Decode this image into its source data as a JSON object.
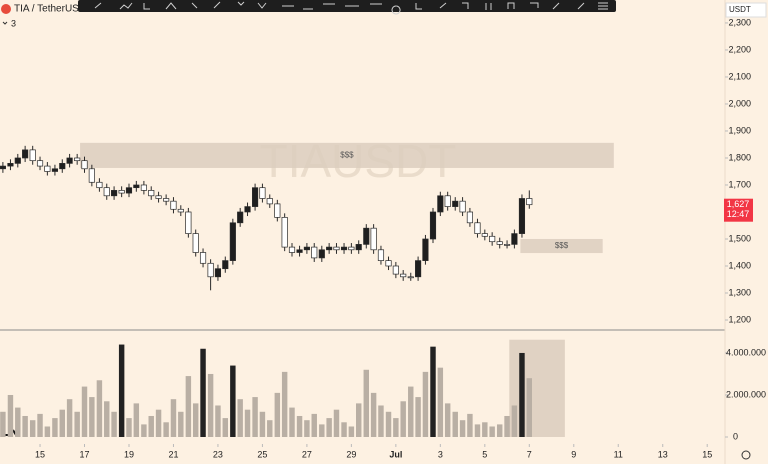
{
  "chart_data": {
    "type": "candlestick",
    "title": "TIA / TetherUS",
    "indicator_count": "3",
    "watermark": "TIAUSDT",
    "currency": "USDT",
    "up_color": "#1f1f1f",
    "down_color": "#ffffff",
    "border_color": "#2a2a2a",
    "x": [
      13.33,
      13.67,
      14,
      14.33,
      14.67,
      15,
      15.33,
      15.67,
      16,
      16.33,
      16.67,
      17,
      17.33,
      17.67,
      18,
      18.33,
      18.67,
      19,
      19.33,
      19.67,
      20,
      20.33,
      20.67,
      21,
      21.33,
      21.67,
      22,
      22.33,
      22.67,
      23,
      23.33,
      23.67,
      24,
      24.33,
      24.67,
      25,
      25.33,
      25.67,
      26,
      26.33,
      26.67,
      27,
      27.33,
      27.67,
      28,
      28.33,
      28.67,
      29,
      29.33,
      29.67,
      30,
      30.33,
      30.67,
      31,
      31.33,
      31.67,
      32,
      32.33,
      32.67,
      33,
      33.33,
      33.67,
      34,
      34.33,
      34.67,
      35,
      35.33,
      35.67,
      36,
      36.33,
      36.67,
      37
    ],
    "open": [
      1760,
      1770,
      1780,
      1800,
      1830,
      1790,
      1770,
      1750,
      1760,
      1780,
      1800,
      1790,
      1760,
      1710,
      1690,
      1660,
      1680,
      1670,
      1690,
      1700,
      1680,
      1660,
      1650,
      1640,
      1610,
      1600,
      1520,
      1450,
      1410,
      1360,
      1390,
      1420,
      1560,
      1600,
      1620,
      1690,
      1650,
      1630,
      1580,
      1470,
      1450,
      1460,
      1470,
      1430,
      1460,
      1470,
      1460,
      1470,
      1460,
      1480,
      1540,
      1460,
      1420,
      1400,
      1370,
      1360,
      1360,
      1420,
      1500,
      1600,
      1660,
      1620,
      1640,
      1600,
      1560,
      1520,
      1510,
      1490,
      1480,
      1480,
      1520,
      1650
    ],
    "high": [
      1785,
      1795,
      1815,
      1845,
      1845,
      1805,
      1785,
      1775,
      1795,
      1815,
      1815,
      1805,
      1775,
      1725,
      1705,
      1695,
      1695,
      1705,
      1715,
      1715,
      1695,
      1675,
      1665,
      1655,
      1625,
      1615,
      1535,
      1465,
      1425,
      1405,
      1435,
      1575,
      1615,
      1635,
      1705,
      1705,
      1665,
      1645,
      1595,
      1485,
      1475,
      1485,
      1485,
      1475,
      1485,
      1485,
      1485,
      1485,
      1495,
      1555,
      1555,
      1475,
      1435,
      1415,
      1385,
      1375,
      1435,
      1515,
      1615,
      1675,
      1675,
      1655,
      1655,
      1615,
      1575,
      1535,
      1525,
      1505,
      1495,
      1535,
      1665,
      1680
    ],
    "low": [
      1745,
      1755,
      1765,
      1785,
      1775,
      1755,
      1735,
      1735,
      1745,
      1765,
      1775,
      1745,
      1695,
      1675,
      1645,
      1645,
      1655,
      1655,
      1675,
      1665,
      1645,
      1635,
      1625,
      1595,
      1585,
      1505,
      1435,
      1395,
      1310,
      1345,
      1375,
      1405,
      1545,
      1585,
      1605,
      1635,
      1615,
      1565,
      1455,
      1435,
      1435,
      1445,
      1415,
      1415,
      1445,
      1445,
      1445,
      1445,
      1445,
      1465,
      1445,
      1405,
      1385,
      1355,
      1345,
      1345,
      1345,
      1405,
      1485,
      1585,
      1605,
      1605,
      1585,
      1545,
      1505,
      1495,
      1475,
      1465,
      1465,
      1465,
      1505,
      1612
    ],
    "close": [
      1770,
      1780,
      1800,
      1830,
      1790,
      1770,
      1750,
      1760,
      1780,
      1800,
      1790,
      1760,
      1710,
      1690,
      1660,
      1680,
      1670,
      1690,
      1700,
      1680,
      1660,
      1650,
      1640,
      1610,
      1600,
      1520,
      1450,
      1410,
      1360,
      1390,
      1420,
      1560,
      1600,
      1620,
      1690,
      1650,
      1630,
      1580,
      1470,
      1450,
      1460,
      1470,
      1430,
      1460,
      1470,
      1460,
      1470,
      1460,
      1480,
      1540,
      1460,
      1420,
      1400,
      1370,
      1360,
      1360,
      1420,
      1500,
      1600,
      1660,
      1620,
      1640,
      1600,
      1560,
      1520,
      1510,
      1490,
      1480,
      1480,
      1520,
      1650,
      1627
    ],
    "xlim": [
      13.2,
      45.8
    ],
    "xticks": [
      15,
      17,
      19,
      21,
      23,
      25,
      27,
      29,
      {
        "value": 31,
        "label": "Jul"
      },
      {
        "value": 33,
        "label": "3"
      },
      {
        "value": 35,
        "label": "5"
      },
      {
        "value": 37,
        "label": "7"
      },
      {
        "value": 39,
        "label": "9"
      },
      {
        "value": 41,
        "label": "11"
      },
      {
        "value": 43,
        "label": "13"
      },
      {
        "value": 45,
        "label": "15"
      }
    ],
    "ylim": [
      1163,
      2385
    ],
    "yticks": [
      {
        "value": 1200,
        "label": "1,200"
      },
      {
        "value": 1300,
        "label": "1,300"
      },
      {
        "value": 1400,
        "label": "1,400"
      },
      {
        "value": 1500,
        "label": "1,500"
      },
      {
        "value": 1600,
        "label": "1,600"
      },
      {
        "value": 1700,
        "label": "1,700"
      },
      {
        "value": 1800,
        "label": "1,800"
      },
      {
        "value": 1900,
        "label": "1,900"
      },
      {
        "value": 2000,
        "label": "2,000"
      },
      {
        "value": 2100,
        "label": "2,100"
      },
      {
        "value": 2200,
        "label": "2,200"
      },
      {
        "value": 2300,
        "label": "2,300"
      }
    ],
    "last_price": {
      "value": 1627,
      "label": "1,627"
    },
    "countdown": "12:47",
    "zones": [
      {
        "label": "$$$",
        "x": [
          16.8,
          40.8
        ],
        "y": [
          1763,
          1856
        ]
      },
      {
        "label": "$$$",
        "x": [
          36.6,
          40.3
        ],
        "y": [
          1448,
          1500
        ]
      }
    ],
    "volume": {
      "values": [
        1200000,
        2000000,
        1400000,
        1000000,
        800000,
        1100000,
        500000,
        900000,
        1300000,
        1800000,
        1200000,
        2400000,
        1900000,
        2700000,
        1700000,
        1200000,
        4400000,
        900000,
        1600000,
        600000,
        1000000,
        1300000,
        700000,
        1800000,
        1200000,
        2900000,
        1600000,
        4200000,
        3000000,
        1500000,
        900000,
        3400000,
        1800000,
        1300000,
        1900000,
        1200000,
        800000,
        2100000,
        3100000,
        1400000,
        1000000,
        800000,
        1100000,
        600000,
        900000,
        1300000,
        700000,
        500000,
        1600000,
        3200000,
        2100000,
        1500000,
        1200000,
        900000,
        1700000,
        2400000,
        1900000,
        3100000,
        4300000,
        3300000,
        1600000,
        1200000,
        800000,
        1100000,
        600000,
        700000,
        500000,
        600000,
        1000000,
        1500000,
        4000000,
        2800000
      ],
      "colors": [
        "#b9afa4",
        "#b9afa4",
        "#b9afa4",
        "#b9afa4",
        "#b9afa4",
        "#b9afa4",
        "#b9afa4",
        "#b9afa4",
        "#b9afa4",
        "#b9afa4",
        "#b9afa4",
        "#b9afa4",
        "#b9afa4",
        "#b9afa4",
        "#b9afa4",
        "#b9afa4",
        "#222222",
        "#b9afa4",
        "#b9afa4",
        "#b9afa4",
        "#b9afa4",
        "#b9afa4",
        "#b9afa4",
        "#b9afa4",
        "#b9afa4",
        "#b9afa4",
        "#b9afa4",
        "#222222",
        "#b9afa4",
        "#b9afa4",
        "#b9afa4",
        "#222222",
        "#b9afa4",
        "#b9afa4",
        "#b9afa4",
        "#b9afa4",
        "#b9afa4",
        "#b9afa4",
        "#b9afa4",
        "#b9afa4",
        "#b9afa4",
        "#b9afa4",
        "#b9afa4",
        "#b9afa4",
        "#b9afa4",
        "#b9afa4",
        "#b9afa4",
        "#b9afa4",
        "#b9afa4",
        "#b9afa4",
        "#b9afa4",
        "#b9afa4",
        "#b9afa4",
        "#b9afa4",
        "#b9afa4",
        "#b9afa4",
        "#b9afa4",
        "#b9afa4",
        "#222222",
        "#b9afa4",
        "#b9afa4",
        "#b9afa4",
        "#b9afa4",
        "#b9afa4",
        "#b9afa4",
        "#b9afa4",
        "#b9afa4",
        "#b9afa4",
        "#b9afa4",
        "#b9afa4",
        "#222222",
        "#b9afa4"
      ],
      "ylim": [
        0,
        4950000
      ],
      "yticks": [
        0,
        {
          "value": 2000000,
          "label": "2.000.000"
        },
        {
          "value": 4000000,
          "label": "4.000.000"
        }
      ],
      "zone": {
        "x": [
          36.1,
          38.6
        ],
        "y": [
          0,
          4630000
        ]
      }
    }
  }
}
